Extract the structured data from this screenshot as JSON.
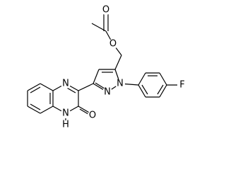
{
  "atoms": {
    "carbonyl_o": "O",
    "ether_o": "O",
    "pyrazole_n1": "N",
    "pyrazole_n2": "N",
    "fluorine": "F",
    "quinoxaline_n4": "N",
    "quinoxaline_n1": "N",
    "hydrogen": "H",
    "quinoxaline_o": "O"
  }
}
